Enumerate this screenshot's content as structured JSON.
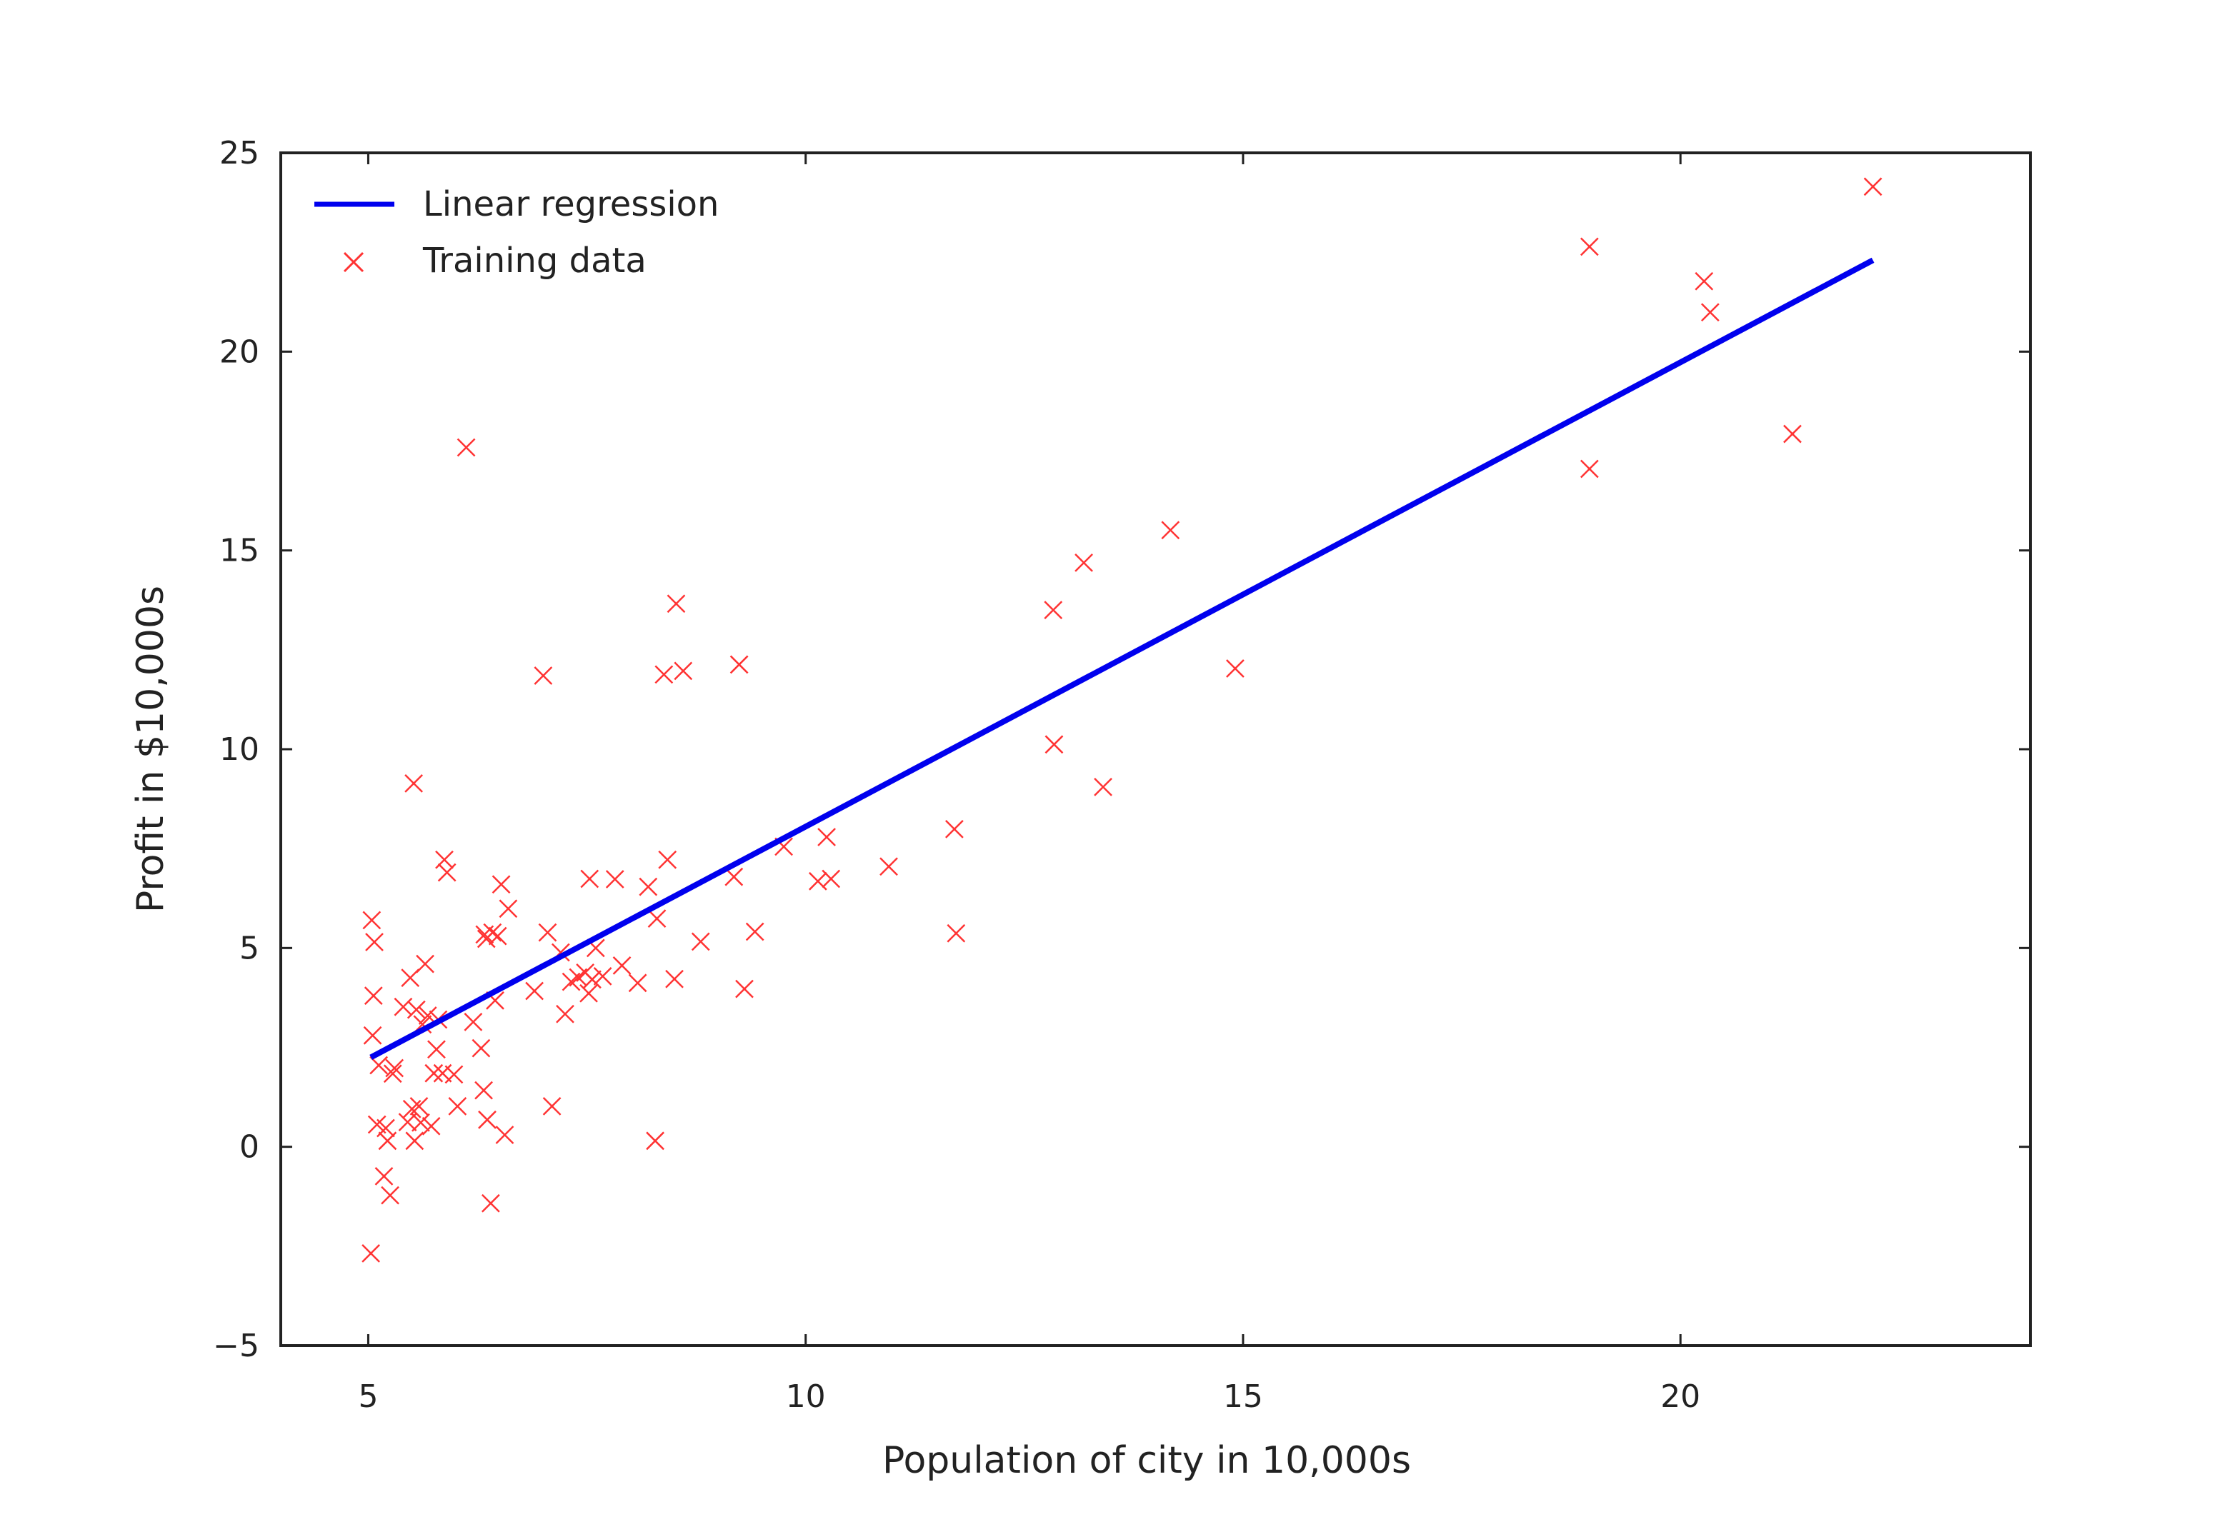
{
  "chart_data": {
    "type": "scatter",
    "xlabel": "Population of city in 10,000s",
    "ylabel": "Profit in $10,000s",
    "xlim": [
      4,
      24
    ],
    "ylim": [
      -5,
      25
    ],
    "xticks": [
      5,
      10,
      15,
      20
    ],
    "xtick_labels": [
      "5",
      "10",
      "15",
      "20"
    ],
    "yticks": [
      -5,
      0,
      5,
      10,
      15,
      20,
      25
    ],
    "ytick_labels": [
      "−5",
      "0",
      "5",
      "10",
      "15",
      "20",
      "25"
    ],
    "grid": false,
    "legend_position": "top-left",
    "series": [
      {
        "name": "Linear regression",
        "kind": "line",
        "color": "#0000ee",
        "x": [
          5.03,
          22.2
        ],
        "y": [
          2.25,
          22.3
        ]
      },
      {
        "name": "Training data",
        "kind": "scatter",
        "marker": "x",
        "color": "#ff3333",
        "x": [
          5.03,
          5.04,
          5.05,
          5.06,
          5.07,
          5.1,
          5.12,
          5.18,
          5.2,
          5.22,
          5.25,
          5.28,
          5.3,
          5.4,
          5.45,
          5.48,
          5.5,
          5.52,
          5.53,
          5.55,
          5.58,
          5.6,
          5.62,
          5.65,
          5.68,
          5.72,
          5.75,
          5.78,
          5.8,
          5.85,
          5.87,
          5.9,
          5.98,
          6.02,
          6.12,
          6.2,
          6.29,
          6.32,
          6.33,
          6.35,
          6.36,
          6.4,
          6.42,
          6.45,
          6.48,
          6.52,
          6.56,
          6.6,
          6.9,
          7.0,
          7.05,
          7.1,
          7.2,
          7.25,
          7.32,
          7.4,
          7.48,
          7.52,
          7.53,
          7.56,
          7.6,
          7.68,
          7.82,
          7.9,
          8.08,
          8.2,
          8.28,
          8.3,
          8.38,
          8.42,
          8.5,
          8.52,
          8.6,
          8.8,
          9.18,
          9.24,
          9.3,
          9.42,
          9.75,
          10.14,
          10.24,
          10.29,
          10.95,
          11.7,
          11.72,
          12.83,
          12.84,
          13.18,
          13.4,
          14.17,
          14.91,
          18.96,
          18.96,
          20.27,
          20.34,
          21.28,
          22.2
        ],
        "y": [
          -2.68,
          5.7,
          2.8,
          3.8,
          5.15,
          0.56,
          2.05,
          -0.74,
          0.47,
          0.15,
          -1.22,
          1.84,
          1.98,
          3.52,
          0.62,
          4.25,
          0.95,
          9.14,
          0.15,
          3.45,
          1.02,
          0.61,
          3.08,
          4.6,
          3.3,
          0.52,
          1.85,
          2.45,
          3.2,
          1.85,
          7.22,
          6.9,
          1.82,
          1.02,
          17.59,
          3.14,
          2.48,
          1.42,
          5.34,
          5.23,
          0.68,
          -1.42,
          5.39,
          3.68,
          5.3,
          6.6,
          0.3,
          5.99,
          3.92,
          11.85,
          5.39,
          1.02,
          4.89,
          3.34,
          4.15,
          4.26,
          4.38,
          3.86,
          6.74,
          4.21,
          5.0,
          4.29,
          6.73,
          4.56,
          4.12,
          6.54,
          0.15,
          5.74,
          11.88,
          7.22,
          4.22,
          13.66,
          11.97,
          5.16,
          6.79,
          12.13,
          3.97,
          5.41,
          7.55,
          6.68,
          7.79,
          6.74,
          7.05,
          7.99,
          5.37,
          13.5,
          10.12,
          14.69,
          9.05,
          15.51,
          12.03,
          22.64,
          17.05,
          21.77,
          20.99,
          17.93,
          24.15
        ]
      }
    ]
  },
  "legend": {
    "items": [
      {
        "label": "Linear regression"
      },
      {
        "label": "Training data"
      }
    ]
  }
}
